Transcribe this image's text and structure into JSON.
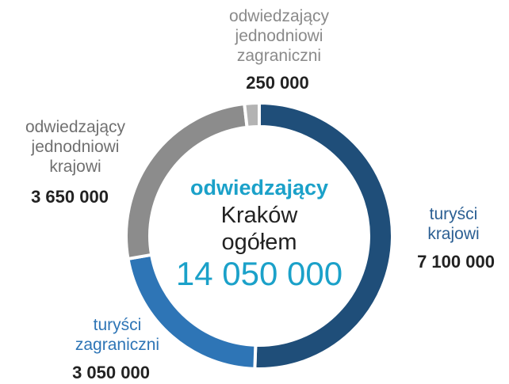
{
  "chart_data": {
    "type": "pie",
    "categories": [
      "turyści krajowi",
      "turyści zagraniczni",
      "odwiedzający jednodniowi krajowi",
      "odwiedzający jednodniowi zagraniczni"
    ],
    "values": [
      7100000,
      3050000,
      3650000,
      250000
    ],
    "value_labels": [
      "7 100 000",
      "3 050 000",
      "3 650 000",
      "250 000"
    ],
    "colors": [
      "#1f4e79",
      "#2e75b6",
      "#8c8c8c",
      "#b3b3b3"
    ],
    "label_colors": [
      "#2b5f93",
      "#2e75b6",
      "#707070",
      "#8a8a8a"
    ],
    "center": {
      "line1": "odwiedzający",
      "line2": "Kraków",
      "line3": "ogółem",
      "total": "14 050 000"
    }
  }
}
